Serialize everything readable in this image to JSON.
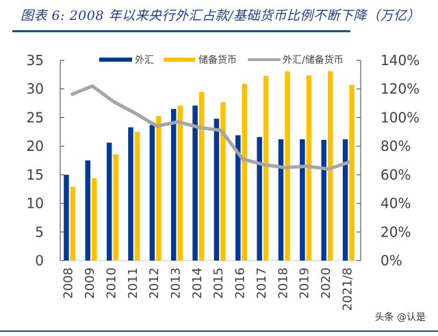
{
  "title": "图表 6:  2008 年以来央行外汇占款/基础货币比例不断下降（万亿）",
  "watermark": "头条 @认是",
  "colors": {
    "fx": "#003a96",
    "base_money": "#ffc000",
    "ratio": "#a6a6a6",
    "title": "#1f3f8f",
    "axis_text": "#404040"
  },
  "chart_data": {
    "type": "bar",
    "title": "2008 年以来央行外汇占款/基础货币比例不断下降（万亿）",
    "xlabel": "",
    "ylabel": "",
    "categories": [
      "2008",
      "2009",
      "2010",
      "2011",
      "2012",
      "2013",
      "2014",
      "2015",
      "2016",
      "2017",
      "2018",
      "2019",
      "2020",
      "2021/8"
    ],
    "series": [
      {
        "name": "外汇",
        "type": "bar",
        "axis": "left",
        "values": [
          15.0,
          17.5,
          20.6,
          23.3,
          23.7,
          26.5,
          27.1,
          24.8,
          21.9,
          21.6,
          21.2,
          21.2,
          21.1,
          21.2
        ]
      },
      {
        "name": "储备货币",
        "type": "bar",
        "axis": "left",
        "values": [
          12.9,
          14.4,
          18.6,
          22.5,
          25.3,
          27.1,
          29.5,
          27.7,
          30.9,
          32.3,
          33.1,
          32.4,
          33.1,
          30.7
        ]
      },
      {
        "name": "外汇/储备货币",
        "type": "line",
        "axis": "right",
        "values": [
          116,
          122,
          111,
          103,
          94,
          97,
          93,
          91,
          71,
          67,
          65,
          66,
          64,
          69
        ]
      }
    ],
    "ylim": [
      0,
      35
    ],
    "yticks": [
      "0",
      "5",
      "10",
      "15",
      "20",
      "25",
      "30",
      "35"
    ],
    "y2lim": [
      0,
      140
    ],
    "y2ticks": [
      "0%",
      "20%",
      "40%",
      "60%",
      "80%",
      "100%",
      "120%",
      "140%"
    ],
    "legend": {
      "placement": "top",
      "entries": [
        "外汇",
        "储备货币",
        "外汇/储备货币"
      ]
    },
    "grid": false
  }
}
